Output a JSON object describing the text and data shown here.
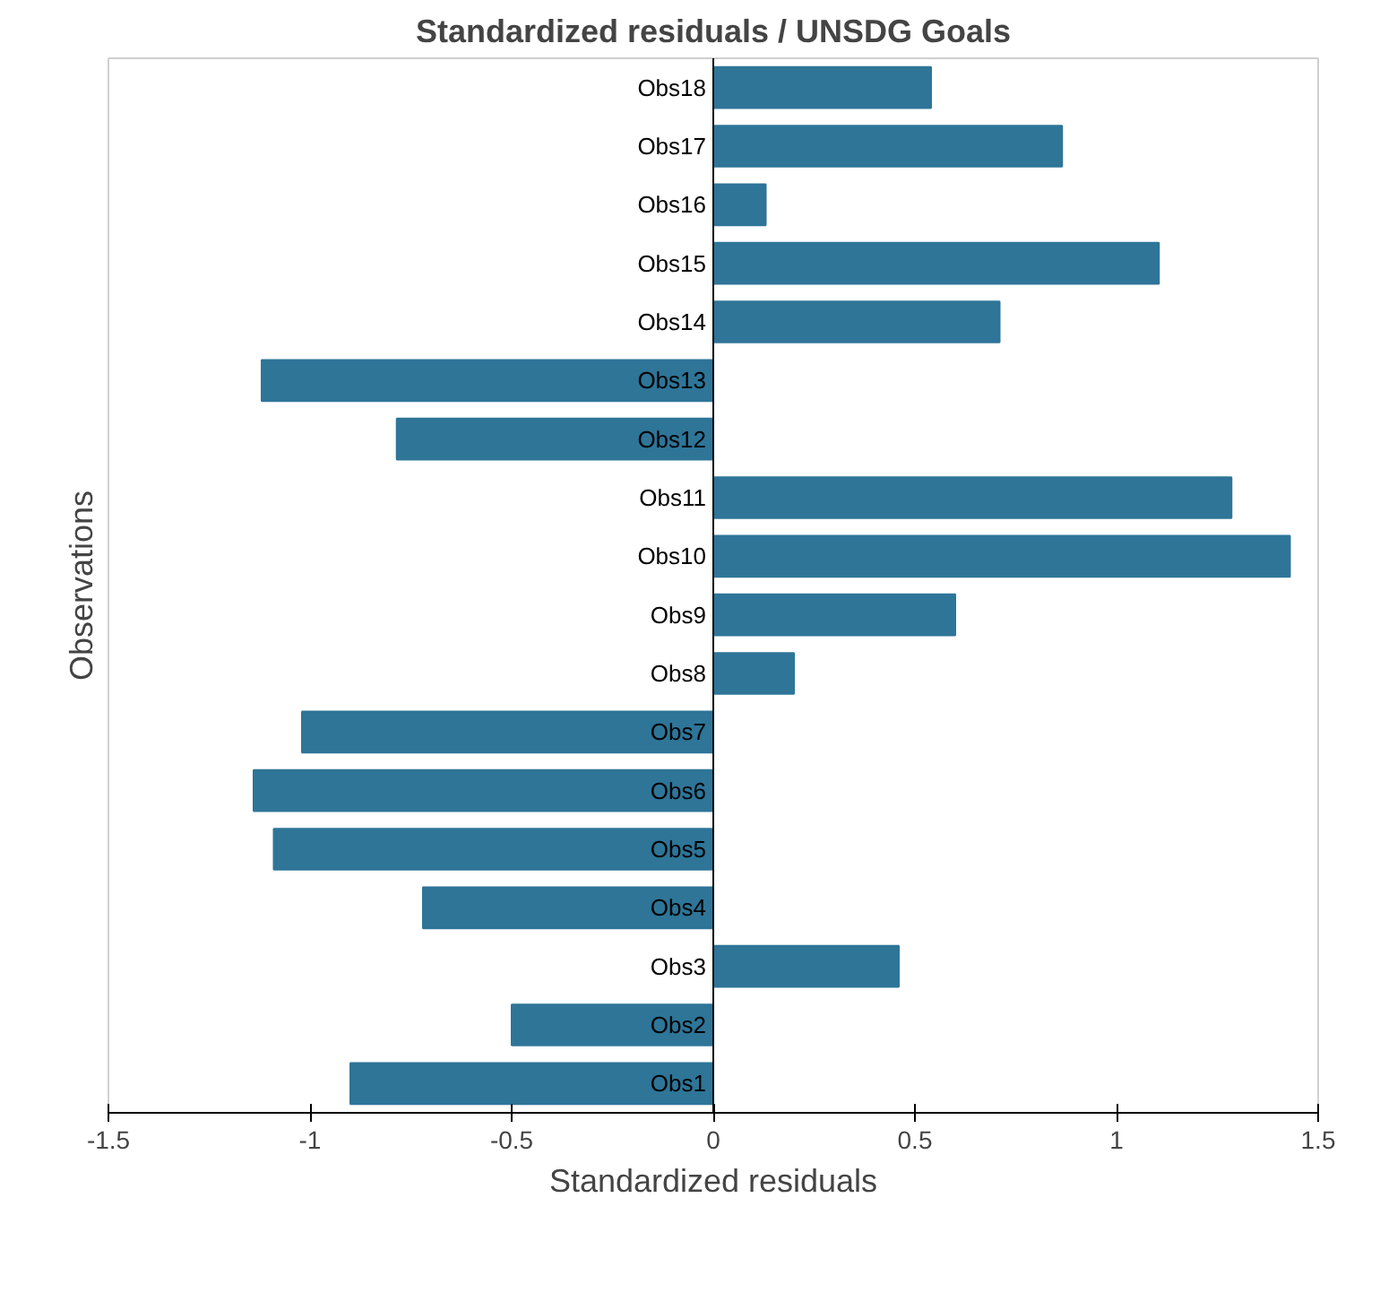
{
  "chart_data": {
    "type": "bar",
    "orientation": "horizontal",
    "title": "Standardized residuals / UNSDG Goals",
    "xlabel": "Standardized residuals",
    "ylabel": "Observations",
    "categories": [
      "Obs18",
      "Obs17",
      "Obs16",
      "Obs15",
      "Obs14",
      "Obs13",
      "Obs12",
      "Obs11",
      "Obs10",
      "Obs9",
      "Obs8",
      "Obs7",
      "Obs6",
      "Obs5",
      "Obs4",
      "Obs3",
      "Obs2",
      "Obs1"
    ],
    "values": [
      0.54,
      0.865,
      0.13,
      1.105,
      0.71,
      -1.12,
      -0.785,
      1.285,
      1.43,
      0.6,
      0.2,
      -1.02,
      -1.14,
      -1.09,
      -0.72,
      0.46,
      -0.5,
      -0.9
    ],
    "color": "#2e7598",
    "xlim": [
      -1.5,
      1.5
    ],
    "xticks": [
      -1.5,
      -1,
      -0.5,
      0,
      0.5,
      1,
      1.5
    ]
  }
}
